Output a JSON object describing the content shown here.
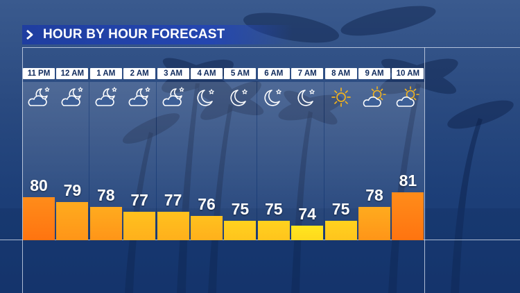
{
  "header": {
    "title": "HOUR BY HOUR FORECAST",
    "chevron_icon": "chevron-right-icon"
  },
  "colors": {
    "header_blue": "#2446b0",
    "bar_hot": "#ff7a12",
    "bar_warm": "#ffb21c",
    "bar_mild": "#ffd21e",
    "bar_cool": "#ffe31e"
  },
  "forecast": [
    {
      "time": "11 PM",
      "icon": "cloud-moon-icon",
      "temp": "80",
      "value": 80
    },
    {
      "time": "12 AM",
      "icon": "cloud-moon-icon",
      "temp": "79",
      "value": 79
    },
    {
      "time": "1 AM",
      "icon": "cloud-moon-icon",
      "temp": "78",
      "value": 78
    },
    {
      "time": "2 AM",
      "icon": "cloud-moon-icon",
      "temp": "77",
      "value": 77
    },
    {
      "time": "3 AM",
      "icon": "cloud-moon-icon",
      "temp": "77",
      "value": 77
    },
    {
      "time": "4 AM",
      "icon": "moon-star-icon",
      "temp": "76",
      "value": 76
    },
    {
      "time": "5 AM",
      "icon": "moon-star-icon",
      "temp": "75",
      "value": 75
    },
    {
      "time": "6 AM",
      "icon": "moon-star-icon",
      "temp": "75",
      "value": 75
    },
    {
      "time": "7 AM",
      "icon": "moon-star-icon",
      "temp": "74",
      "value": 74
    },
    {
      "time": "8 AM",
      "icon": "sun-icon",
      "temp": "75",
      "value": 75
    },
    {
      "time": "9 AM",
      "icon": "sun-cloud-icon",
      "temp": "78",
      "value": 78
    },
    {
      "time": "10 AM",
      "icon": "sun-cloud-icon",
      "temp": "81",
      "value": 81
    }
  ]
}
